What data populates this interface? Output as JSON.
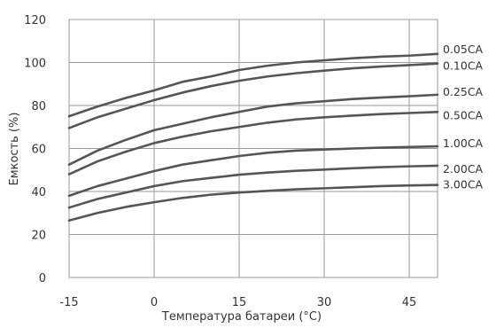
{
  "chart_data": {
    "type": "line",
    "title": "",
    "xlabel": "Температура батареи (°C)",
    "ylabel": "Емкость (%)",
    "xlim": [
      -15,
      50
    ],
    "ylim": [
      0,
      120
    ],
    "xticks": [
      -15,
      0,
      15,
      30,
      45
    ],
    "yticks": [
      0,
      20,
      40,
      60,
      80,
      100,
      120
    ],
    "grid": true,
    "legend": "labels at right end of each line",
    "line_color": "#555555",
    "grid_color": "#999999",
    "x": [
      -15,
      -10,
      -5,
      0,
      5,
      10,
      15,
      20,
      25,
      30,
      35,
      40,
      45,
      50
    ],
    "series": [
      {
        "name": "0.05CA",
        "values": [
          75,
          79.5,
          83.5,
          87,
          91,
          93.5,
          96.5,
          98.5,
          100,
          101,
          102,
          102.7,
          103.2,
          104
        ]
      },
      {
        "name": "0.10CA",
        "values": [
          69.5,
          74.5,
          78.5,
          82.5,
          86,
          89,
          91.5,
          93.5,
          95,
          96.2,
          97.3,
          98.1,
          98.8,
          99.5
        ]
      },
      {
        "name": "0.25CA",
        "values": [
          52.5,
          59,
          64,
          68.5,
          71.5,
          74.5,
          77,
          79.5,
          81,
          82,
          83,
          83.7,
          84.3,
          85
        ]
      },
      {
        "name": "0.50CA",
        "values": [
          48,
          54,
          58.5,
          62.5,
          65.5,
          68,
          70,
          72,
          73.5,
          74.5,
          75.3,
          76,
          76.5,
          77
        ]
      },
      {
        "name": "1.00CA",
        "values": [
          38,
          42.5,
          46,
          49.5,
          52.5,
          54.5,
          56.5,
          58,
          59,
          59.5,
          60,
          60.4,
          60.7,
          61
        ]
      },
      {
        "name": "2.00CA",
        "values": [
          32.5,
          36.5,
          39.5,
          42.5,
          44.8,
          46.3,
          47.8,
          48.8,
          49.6,
          50.2,
          50.8,
          51.3,
          51.7,
          52
        ]
      },
      {
        "name": "3.00CA",
        "values": [
          26.5,
          30,
          32.8,
          35,
          37,
          38.5,
          39.5,
          40.3,
          41,
          41.5,
          42,
          42.5,
          42.8,
          43
        ]
      }
    ]
  }
}
